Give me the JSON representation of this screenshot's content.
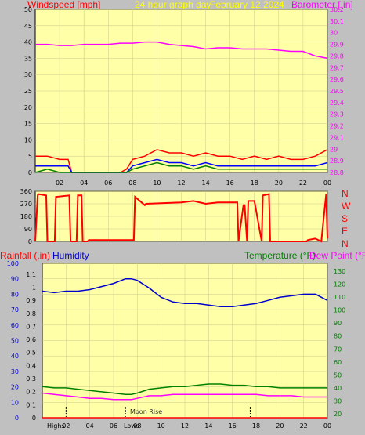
{
  "colors": {
    "wind": "#ff0000",
    "windAvg": "#0000ff",
    "windLow": "#008000",
    "baro": "#ff00ff",
    "dir": "#ff0000",
    "humidity": "#0000cc",
    "temp": "#008000",
    "dew": "#ff00ff",
    "rain": "#ff0000",
    "plotBg": "#ffffa8",
    "axis": "#000000",
    "grid": "#c8c88c",
    "title": "#ffff00"
  },
  "header": {
    "title": "24 hour graph day",
    "date": "February 12 2024"
  },
  "chart_data": [
    {
      "id": "wind-baro",
      "type": "line",
      "title": "24 hour graph day February 12 2024",
      "left_axis_label": "Windspeed [mph]",
      "right_axis_label": "Barometer [.in]",
      "x_tick_labels": [
        "02",
        "04",
        "06",
        "08",
        "10",
        "12",
        "14",
        "16",
        "18",
        "20",
        "22",
        "00"
      ],
      "left_ticks": [
        0,
        5,
        10,
        15,
        20,
        25,
        30,
        35,
        40,
        45,
        50
      ],
      "right_ticks": [
        "28.8",
        "28.9",
        "29",
        "29.1",
        "29.2",
        "29.3",
        "29.4",
        "29.5",
        "29.6",
        "29.7",
        "29.8",
        "29.9",
        "30",
        "30.1",
        "30.2"
      ],
      "ylim_left": [
        0,
        50
      ],
      "ylim_right": [
        28.8,
        30.2
      ],
      "series": [
        {
          "name": "Barometer",
          "axis": "right",
          "x": [
            0,
            1,
            2,
            3,
            4,
            5,
            6,
            7,
            8,
            9,
            10,
            11,
            12,
            13,
            14,
            15,
            16,
            17,
            18,
            19,
            20,
            21,
            22,
            23,
            24
          ],
          "values": [
            29.9,
            29.9,
            29.89,
            29.89,
            29.9,
            29.9,
            29.9,
            29.91,
            29.91,
            29.92,
            29.92,
            29.9,
            29.89,
            29.88,
            29.86,
            29.87,
            29.87,
            29.86,
            29.86,
            29.86,
            29.85,
            29.84,
            29.84,
            29.8,
            29.78
          ]
        },
        {
          "name": "Wind gust",
          "axis": "left",
          "x": [
            0,
            1,
            2,
            2.7,
            3,
            5,
            6,
            7,
            7.5,
            8,
            9,
            10,
            11,
            12,
            13,
            14,
            15,
            16,
            17,
            18,
            19,
            20,
            21,
            22,
            23,
            24
          ],
          "values": [
            5,
            5,
            4,
            4,
            0,
            0,
            0,
            0,
            1,
            4,
            5,
            7,
            6,
            6,
            5,
            6,
            5,
            5,
            4,
            5,
            4,
            5,
            4,
            4,
            5,
            7
          ]
        },
        {
          "name": "Wind average",
          "axis": "left",
          "x": [
            0,
            1,
            2,
            2.7,
            3,
            7,
            7.5,
            8,
            9,
            10,
            11,
            12,
            13,
            14,
            15,
            16,
            17,
            18,
            19,
            20,
            21,
            22,
            23,
            24
          ],
          "values": [
            2,
            2,
            2,
            2,
            0,
            0,
            0,
            2,
            3,
            4,
            3,
            3,
            2,
            3,
            2,
            2,
            2,
            2,
            2,
            2,
            2,
            2,
            2,
            3
          ]
        },
        {
          "name": "Wind low",
          "axis": "left",
          "x": [
            0,
            1,
            2,
            3,
            7.5,
            8,
            9,
            10,
            11,
            12,
            13,
            14,
            15,
            16,
            17,
            18,
            19,
            20,
            21,
            22,
            23,
            24
          ],
          "values": [
            0,
            1,
            0,
            0,
            0,
            1,
            2,
            3,
            2,
            2,
            1,
            2,
            1,
            1,
            1,
            1,
            1,
            1,
            1,
            1,
            1,
            1
          ]
        }
      ]
    },
    {
      "id": "wind-direction",
      "type": "line",
      "right_labels": [
        "N",
        "W",
        "S",
        "E",
        "N"
      ],
      "left_ticks": [
        0,
        90,
        180,
        270,
        360
      ],
      "ylim": [
        0,
        360
      ],
      "series": [
        {
          "name": "Wind direction",
          "x": [
            0,
            0.2,
            0.25,
            0.9,
            1,
            1.6,
            1.7,
            2.8,
            2.9,
            3.4,
            3.5,
            3.8,
            3.9,
            4.3,
            4.4,
            8.1,
            8.2,
            9.0,
            9.1,
            12,
            13,
            14,
            15,
            16.6,
            16.7,
            17.1,
            17.2,
            17.4,
            17.5,
            18,
            18.6,
            18.7,
            19.2,
            19.3,
            22.3,
            22.4,
            23,
            23.5,
            23.9,
            24
          ],
          "values": [
            0,
            330,
            340,
            330,
            0,
            0,
            320,
            330,
            0,
            0,
            330,
            330,
            0,
            0,
            10,
            10,
            320,
            260,
            270,
            280,
            290,
            270,
            280,
            280,
            0,
            260,
            260,
            0,
            290,
            290,
            0,
            330,
            340,
            0,
            0,
            10,
            20,
            0,
            340,
            20
          ]
        }
      ]
    },
    {
      "id": "temp-humidity",
      "type": "line",
      "left_axis_label": "Rainfall (.in)",
      "left_axis_label2": "Humidity",
      "right_axis_label": "Temperature (°F)",
      "right_axis_label2": "Dew Point (°F)",
      "annotations": [
        "Moon Rise",
        "Highs",
        "Lows"
      ],
      "x_tick_labels": [
        "02",
        "04",
        "06",
        "08",
        "10",
        "12",
        "14",
        "16",
        "18",
        "20",
        "22",
        "00"
      ],
      "humidity_ticks": [
        0,
        10,
        20,
        30,
        40,
        50,
        60,
        70,
        80,
        90,
        100
      ],
      "rain_ticks": [
        "0",
        "0.1",
        "0.2",
        "0.3",
        "0.4",
        "0.5",
        "0.6",
        "0.7",
        "0.8",
        "0.9",
        "1",
        "1.1"
      ],
      "temp_ticks": [
        20,
        30,
        40,
        50,
        60,
        70,
        80,
        90,
        100,
        110,
        120,
        130
      ],
      "ylim_humidity": [
        0,
        100
      ],
      "ylim_temp": [
        17,
        136
      ],
      "series": [
        {
          "name": "Humidity",
          "axis": "humidity",
          "x": [
            0,
            1,
            2,
            3,
            4,
            5,
            6,
            7,
            7.5,
            8,
            9,
            10,
            11,
            12,
            13,
            14,
            15,
            16,
            17,
            18,
            19,
            20,
            21,
            22,
            23,
            24
          ],
          "values": [
            82,
            81,
            82,
            82,
            83,
            85,
            87,
            90,
            90,
            89,
            84,
            78,
            75,
            74,
            74,
            73,
            72,
            72,
            73,
            74,
            76,
            78,
            79,
            80,
            80,
            76
          ]
        },
        {
          "name": "Temperature",
          "axis": "temp",
          "x": [
            0,
            1,
            2,
            3,
            4,
            5,
            6,
            7,
            7.5,
            8,
            9,
            10,
            11,
            12,
            13,
            14,
            15,
            16,
            17,
            18,
            19,
            20,
            21,
            22,
            23,
            24
          ],
          "values": [
            41,
            40,
            40,
            39,
            38,
            37,
            36,
            35,
            35,
            36,
            39,
            40,
            41,
            41,
            42,
            43,
            43,
            42,
            42,
            41,
            41,
            40,
            40,
            40,
            40,
            40
          ]
        },
        {
          "name": "Dew Point",
          "axis": "temp",
          "x": [
            0,
            1,
            2,
            3,
            4,
            5,
            6,
            7,
            7.5,
            8,
            9,
            10,
            11,
            12,
            13,
            14,
            15,
            16,
            17,
            18,
            19,
            20,
            21,
            22,
            23,
            24
          ],
          "values": [
            36,
            35,
            34,
            33,
            32,
            32,
            31,
            31,
            31,
            32,
            34,
            34,
            35,
            35,
            35,
            35,
            35,
            35,
            35,
            35,
            34,
            34,
            34,
            33,
            33,
            33
          ]
        },
        {
          "name": "Rainfall",
          "axis": "rain",
          "x": [
            0,
            24
          ],
          "values": [
            0,
            0
          ]
        }
      ]
    }
  ]
}
